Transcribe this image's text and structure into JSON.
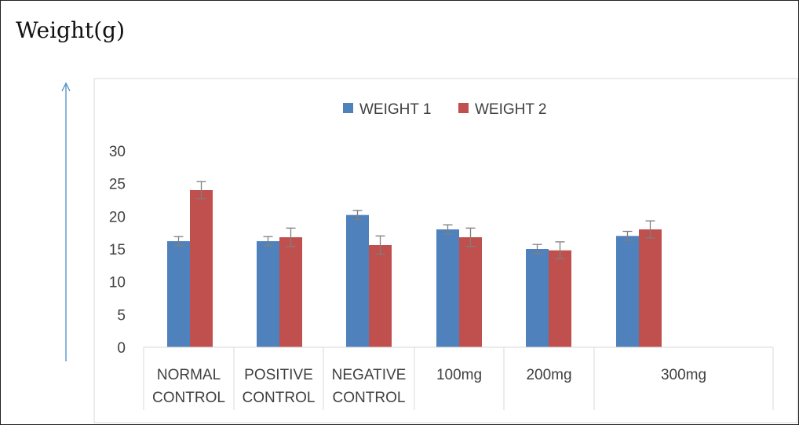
{
  "outer_title": "Weight(g)",
  "colors": {
    "series_1": "#4f81bd",
    "series_2": "#c0504d",
    "axis_arrow": "#4a90c8",
    "error_bar": "#7f7f7f",
    "plot_border": "#d9d9d9"
  },
  "chart_data": {
    "type": "bar",
    "title": "",
    "xlabel": "",
    "ylabel": "",
    "ylim": [
      0,
      30
    ],
    "yticks": [
      0,
      5,
      10,
      15,
      20,
      25,
      30
    ],
    "grid": false,
    "legend": "top-center",
    "categories": [
      [
        "NORMAL",
        "CONTROL"
      ],
      [
        "POSITIVE",
        "CONTROL"
      ],
      [
        "NEGATIVE",
        "CONTROL"
      ],
      [
        "100mg"
      ],
      [
        "200mg"
      ],
      [
        "300mg"
      ]
    ],
    "series": [
      {
        "name": "WEIGHT 1",
        "values": [
          16.2,
          16.2,
          20.2,
          18.0,
          15.0,
          17.0
        ],
        "errors": [
          0.7,
          0.7,
          0.7,
          0.7,
          0.7,
          0.7
        ]
      },
      {
        "name": "WEIGHT 2",
        "values": [
          24.0,
          16.8,
          15.6,
          16.8,
          14.8,
          18.0
        ],
        "errors": [
          1.3,
          1.4,
          1.4,
          1.4,
          1.3,
          1.3
        ]
      }
    ]
  }
}
